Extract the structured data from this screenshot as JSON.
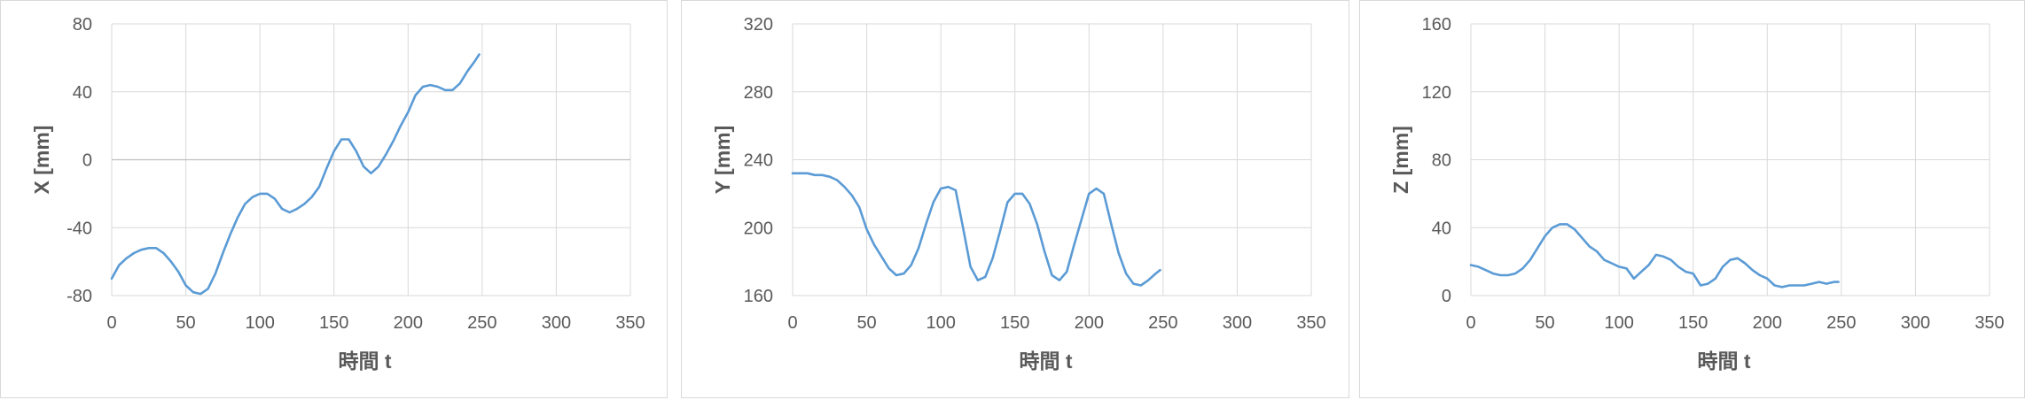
{
  "colors": {
    "line": "#5B9BD5",
    "grid": "#d9d9d9",
    "text": "#595959"
  },
  "chart_data": [
    {
      "type": "line",
      "xlabel": "時間 t",
      "ylabel": "X [mm]",
      "xlim": [
        0,
        350
      ],
      "ylim": [
        -80,
        80
      ],
      "xticks": [
        "0",
        "50",
        "100",
        "150",
        "200",
        "250",
        "300",
        "350"
      ],
      "yticks": [
        "-80",
        "-40",
        "0",
        "40",
        "80"
      ],
      "grid": true,
      "series": [
        {
          "x": [
            0,
            5,
            10,
            15,
            20,
            25,
            30,
            35,
            40,
            45,
            50,
            55,
            60,
            65,
            70,
            75,
            80,
            85,
            90,
            95,
            100,
            105,
            110,
            115,
            120,
            125,
            130,
            135,
            140,
            145,
            150,
            155,
            160,
            165,
            170,
            175,
            180,
            185,
            190,
            195,
            200,
            205,
            210,
            215,
            220,
            225,
            230,
            235,
            240,
            245,
            248
          ],
          "values": [
            -70,
            -62,
            -58,
            -55,
            -53,
            -52,
            -52,
            -55,
            -60,
            -66,
            -74,
            -78,
            -79,
            -76,
            -67,
            -55,
            -44,
            -34,
            -26,
            -22,
            -20,
            -20,
            -23,
            -29,
            -31,
            -29,
            -26,
            -22,
            -16,
            -5,
            5,
            12,
            12,
            5,
            -4,
            -8,
            -4,
            3,
            11,
            20,
            28,
            38,
            43,
            44,
            43,
            41,
            41,
            45,
            52,
            58,
            62
          ]
        }
      ]
    },
    {
      "type": "line",
      "xlabel": "時間 t",
      "ylabel": "Y [mm]",
      "xlim": [
        0,
        350
      ],
      "ylim": [
        160,
        320
      ],
      "xticks": [
        "0",
        "50",
        "100",
        "150",
        "200",
        "250",
        "300",
        "350"
      ],
      "yticks": [
        "160",
        "200",
        "240",
        "280",
        "320"
      ],
      "grid": true,
      "series": [
        {
          "x": [
            0,
            5,
            10,
            15,
            20,
            25,
            30,
            35,
            40,
            45,
            50,
            55,
            60,
            65,
            70,
            75,
            80,
            85,
            90,
            95,
            100,
            105,
            110,
            115,
            120,
            125,
            130,
            135,
            140,
            145,
            150,
            155,
            160,
            165,
            170,
            175,
            180,
            185,
            190,
            195,
            200,
            205,
            210,
            215,
            220,
            225,
            230,
            235,
            240,
            245,
            248
          ],
          "values": [
            232,
            232,
            232,
            231,
            231,
            230,
            228,
            224,
            219,
            212,
            199,
            190,
            183,
            176,
            172,
            173,
            178,
            188,
            202,
            215,
            223,
            224,
            222,
            200,
            177,
            169,
            171,
            182,
            198,
            215,
            220,
            220,
            214,
            202,
            186,
            172,
            169,
            174,
            190,
            205,
            220,
            223,
            220,
            202,
            185,
            173,
            167,
            166,
            169,
            173,
            175
          ]
        }
      ]
    },
    {
      "type": "line",
      "xlabel": "時間 t",
      "ylabel": "Z [mm]",
      "xlim": [
        0,
        350
      ],
      "ylim": [
        0,
        160
      ],
      "xticks": [
        "0",
        "50",
        "100",
        "150",
        "200",
        "250",
        "300",
        "350"
      ],
      "yticks": [
        "0",
        "40",
        "80",
        "120",
        "160"
      ],
      "grid": true,
      "series": [
        {
          "x": [
            0,
            5,
            10,
            15,
            20,
            25,
            30,
            35,
            40,
            45,
            50,
            55,
            60,
            65,
            70,
            75,
            80,
            85,
            90,
            95,
            100,
            105,
            110,
            115,
            120,
            125,
            130,
            135,
            140,
            145,
            150,
            155,
            160,
            165,
            170,
            175,
            180,
            185,
            190,
            195,
            200,
            205,
            210,
            215,
            220,
            225,
            230,
            235,
            240,
            245,
            248
          ],
          "values": [
            18,
            17,
            15,
            13,
            12,
            12,
            13,
            16,
            21,
            28,
            35,
            40,
            42,
            42,
            39,
            34,
            29,
            26,
            21,
            19,
            17,
            16,
            10,
            14,
            18,
            24,
            23,
            21,
            17,
            14,
            13,
            6,
            7,
            10,
            17,
            21,
            22,
            19,
            15,
            12,
            10,
            6,
            5,
            6,
            6,
            6,
            7,
            8,
            7,
            8,
            8
          ]
        }
      ]
    }
  ]
}
